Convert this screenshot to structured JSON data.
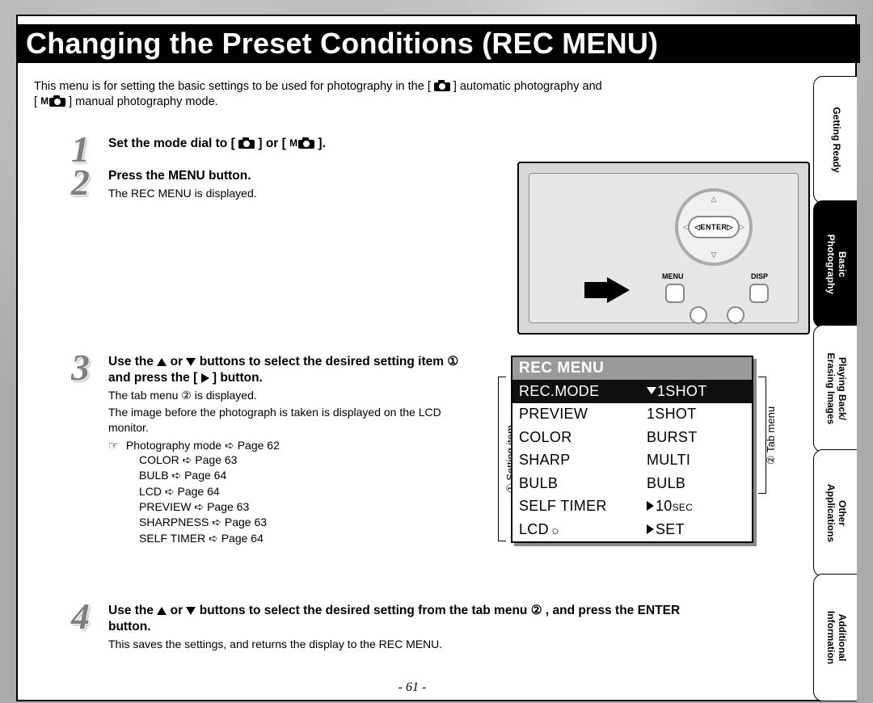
{
  "title": "Changing the Preset Conditions (REC MENU)",
  "intro": {
    "part1": "This menu is for setting the basic settings to be used for photography in the [ ",
    "part2": " ] automatic photography and",
    "part3": "[ ",
    "part4": " ] manual photography mode.",
    "m_prefix": "M"
  },
  "steps": {
    "s1": {
      "num": "1",
      "h_a": "Set the mode dial to [ ",
      "h_b": " ] or [ ",
      "h_c": " ].",
      "m_prefix": "M"
    },
    "s2": {
      "num": "2",
      "h": "Press the MENU button.",
      "t": "The REC MENU is displayed."
    },
    "s3": {
      "num": "3",
      "h_a": "Use the ",
      "h_b": " or ",
      "h_c": " buttons to select the desired setting item ",
      "h_d": " and press the [",
      "h_e": "] button.",
      "circled1": "①",
      "t1": "The tab menu ② is displayed.",
      "t2": "The image before the photograph is taken is displayed on the LCD monitor.",
      "hand": "☞",
      "refmain": "Photography mode ➪ Page 62",
      "refs": [
        "COLOR ➪ Page 63",
        "BULB ➪ Page 64",
        "LCD ➪ Page 64",
        "PREVIEW ➪ Page 63",
        "SHARPNESS ➪ Page 63",
        "SELF TIMER ➪ Page 64"
      ]
    },
    "s4": {
      "num": "4",
      "h_a": "Use the ",
      "h_b": " or ",
      "h_c": " buttons to select the desired setting from the tab menu ",
      "h_d": ", and press the ENTER button.",
      "circled2": "②",
      "t": "This saves the settings, and returns the display to the REC MENU."
    }
  },
  "illus": {
    "enter": "ENTER",
    "menu": "MENU",
    "disp": "DISP"
  },
  "lcd": {
    "title": "REC MENU",
    "rows": [
      {
        "k": "REC.MODE",
        "v": "1SHOT",
        "sel": true,
        "arrow": "down"
      },
      {
        "k": "PREVIEW",
        "v": "1SHOT"
      },
      {
        "k": "COLOR",
        "v": "BURST"
      },
      {
        "k": "SHARP",
        "v": "MULTI"
      },
      {
        "k": "BULB",
        "v": "BULB"
      },
      {
        "k": "SELF TIMER",
        "v": "10",
        "arrow": "right",
        "sec": "SEC"
      },
      {
        "k": "LCD",
        "v": "SET",
        "arrow": "right",
        "sun": "☼"
      }
    ],
    "callout_left": "① Setting item",
    "callout_right": "② Tab menu"
  },
  "sidetabs": [
    {
      "label": "Getting Ready",
      "active": false
    },
    {
      "label": "Basic\nPhotography",
      "active": true
    },
    {
      "label": "Playing Back/\nErasing Images",
      "active": false
    },
    {
      "label": "Other\nApplications",
      "active": false
    },
    {
      "label": "Additional\nInformation",
      "active": false
    }
  ],
  "pagenum": "- 61 -"
}
